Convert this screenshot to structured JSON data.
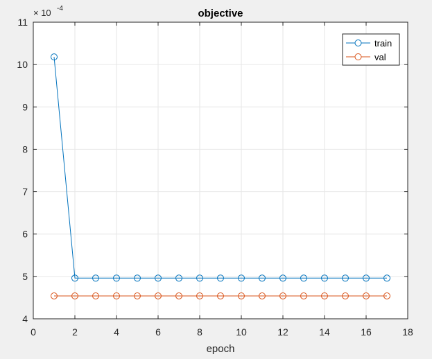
{
  "chart_data": {
    "type": "line",
    "title": "objective",
    "xlabel": "epoch",
    "ylabel": "",
    "exponent_label": "× 10",
    "exponent_power": "-4",
    "xlim": [
      0,
      18
    ],
    "ylim": [
      4,
      11
    ],
    "xticks": [
      "0",
      "2",
      "4",
      "6",
      "8",
      "10",
      "12",
      "14",
      "16",
      "18"
    ],
    "yticks": [
      "4",
      "5",
      "6",
      "7",
      "8",
      "9",
      "10",
      "11"
    ],
    "grid": true,
    "legend_position": "top-right",
    "x": [
      1,
      2,
      3,
      4,
      5,
      6,
      7,
      8,
      9,
      10,
      11,
      12,
      13,
      14,
      15,
      16,
      17
    ],
    "series": [
      {
        "name": "train",
        "color": "#0072bd",
        "marker": "circle-open",
        "values": [
          10.18,
          4.96,
          4.96,
          4.96,
          4.96,
          4.96,
          4.96,
          4.96,
          4.96,
          4.96,
          4.96,
          4.96,
          4.96,
          4.96,
          4.96,
          4.96,
          4.96
        ]
      },
      {
        "name": "val",
        "color": "#d95319",
        "marker": "circle-open",
        "values": [
          4.54,
          4.54,
          4.54,
          4.54,
          4.54,
          4.54,
          4.54,
          4.54,
          4.54,
          4.54,
          4.54,
          4.54,
          4.54,
          4.54,
          4.54,
          4.54,
          4.54
        ]
      }
    ]
  }
}
